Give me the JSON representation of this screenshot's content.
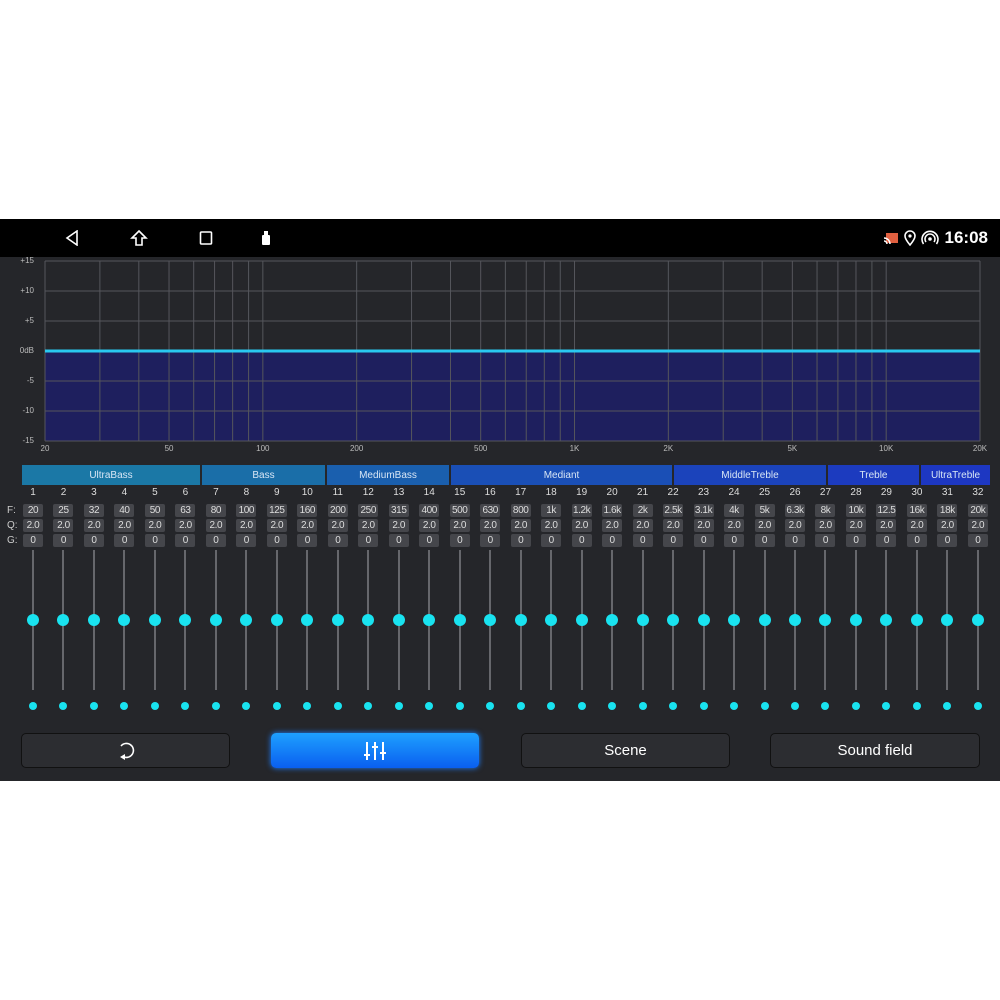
{
  "statusbar": {
    "time": "16:08",
    "nav_icons": [
      "back-icon",
      "home-icon",
      "recents-icon",
      "usb-icon"
    ],
    "status_icons": [
      "cast-icon",
      "location-icon",
      "hotspot-icon"
    ]
  },
  "graph": {
    "y_labels": [
      "+15",
      "+10",
      "+5",
      "0dB",
      "-5",
      "-10",
      "-15"
    ],
    "x_labels": [
      "20",
      "50",
      "100",
      "200",
      "500",
      "1K",
      "2K",
      "5K",
      "10K",
      "20K"
    ],
    "curve_gain_db": 0,
    "line_color": "#29c8f0",
    "fill_color": "#1e1f5e"
  },
  "bands": [
    {
      "label": "UltraBass",
      "color": "#1b78a6"
    },
    {
      "label": "Bass",
      "color": "#1a6ea8"
    },
    {
      "label": "MediumBass",
      "color": "#1a5fae"
    },
    {
      "label": "Mediant",
      "color": "#1a4fb6"
    },
    {
      "label": "MiddleTreble",
      "color": "#1b43bb"
    },
    {
      "label": "Treble",
      "color": "#1c3bbf"
    },
    {
      "label": "UltraTreble",
      "color": "#1d37c2"
    }
  ],
  "row_labels": {
    "f": "F:",
    "q": "Q:",
    "g": "G:"
  },
  "channels": {
    "numbers": [
      "1",
      "2",
      "3",
      "4",
      "5",
      "6",
      "7",
      "8",
      "9",
      "10",
      "11",
      "12",
      "13",
      "14",
      "15",
      "16",
      "17",
      "18",
      "19",
      "20",
      "21",
      "22",
      "23",
      "24",
      "25",
      "26",
      "27",
      "28",
      "29",
      "30",
      "31",
      "32"
    ],
    "freq": [
      "20",
      "25",
      "32",
      "40",
      "50",
      "63",
      "80",
      "100",
      "125",
      "160",
      "200",
      "250",
      "315",
      "400",
      "500",
      "630",
      "800",
      "1k",
      "1.2k",
      "1.6k",
      "2k",
      "2.5k",
      "3.1k",
      "4k",
      "5k",
      "6.3k",
      "8k",
      "10k",
      "12.5",
      "16k",
      "18k",
      "20k"
    ],
    "q": [
      "2.0",
      "2.0",
      "2.0",
      "2.0",
      "2.0",
      "2.0",
      "2.0",
      "2.0",
      "2.0",
      "2.0",
      "2.0",
      "2.0",
      "2.0",
      "2.0",
      "2.0",
      "2.0",
      "2.0",
      "2.0",
      "2.0",
      "2.0",
      "2.0",
      "2.0",
      "2.0",
      "2.0",
      "2.0",
      "2.0",
      "2.0",
      "2.0",
      "2.0",
      "2.0",
      "2.0",
      "2.0"
    ],
    "gain": [
      "0",
      "0",
      "0",
      "0",
      "0",
      "0",
      "0",
      "0",
      "0",
      "0",
      "0",
      "0",
      "0",
      "0",
      "0",
      "0",
      "0",
      "0",
      "0",
      "0",
      "0",
      "0",
      "0",
      "0",
      "0",
      "0",
      "0",
      "0",
      "0",
      "0",
      "0",
      "0"
    ],
    "gain_range": [
      -15,
      15
    ]
  },
  "buttons": {
    "reset_icon": "reset-icon",
    "eq_icon": "equalizer-icon",
    "scene": "Scene",
    "sound_field": "Sound field",
    "active": "equalizer"
  }
}
